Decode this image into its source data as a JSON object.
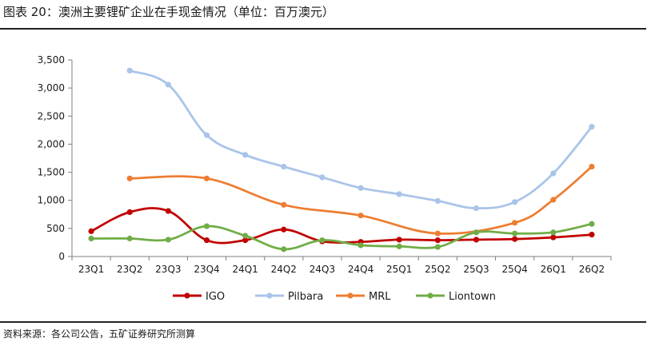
{
  "figure": {
    "title": "图表 20：澳洲主要锂矿企业在手现金情况（单位：百万澳元）",
    "source": "资料来源：各公司公告，五矿证券研究所测算"
  },
  "chart_data": {
    "type": "line",
    "categories": [
      "23Q1",
      "23Q2",
      "23Q3",
      "23Q4",
      "24Q1",
      "24Q2",
      "24Q3",
      "24Q4",
      "25Q1",
      "25Q2",
      "25Q3",
      "25Q4",
      "26Q1",
      "26Q2"
    ],
    "ylim": [
      0,
      3500
    ],
    "yticks": [
      0,
      500,
      1000,
      1500,
      2000,
      2500,
      3000,
      3500
    ],
    "ytick_labels": [
      "0",
      "500",
      "1,000",
      "1,500",
      "2,000",
      "2,500",
      "3,000",
      "3,500"
    ],
    "grid": false,
    "legend_position": "bottom",
    "smooth": true,
    "series": [
      {
        "name": "IGO",
        "color": "#c00000",
        "values": [
          450,
          790,
          810,
          290,
          290,
          480,
          270,
          260,
          300,
          290,
          300,
          310,
          340,
          390
        ]
      },
      {
        "name": "Pilbara",
        "color": "#a9c4e8",
        "values": [
          null,
          3310,
          3060,
          2160,
          1810,
          1600,
          1410,
          1220,
          1110,
          990,
          860,
          970,
          1480,
          2310
        ]
      },
      {
        "name": "MRL",
        "color": "#ed7d31",
        "values": [
          null,
          1390,
          null,
          1390,
          null,
          920,
          null,
          730,
          null,
          410,
          null,
          600,
          1010,
          1600
        ]
      },
      {
        "name": "Liontown",
        "color": "#70ad47",
        "values": [
          320,
          320,
          300,
          540,
          370,
          130,
          290,
          200,
          180,
          170,
          430,
          410,
          430,
          580
        ]
      }
    ]
  }
}
